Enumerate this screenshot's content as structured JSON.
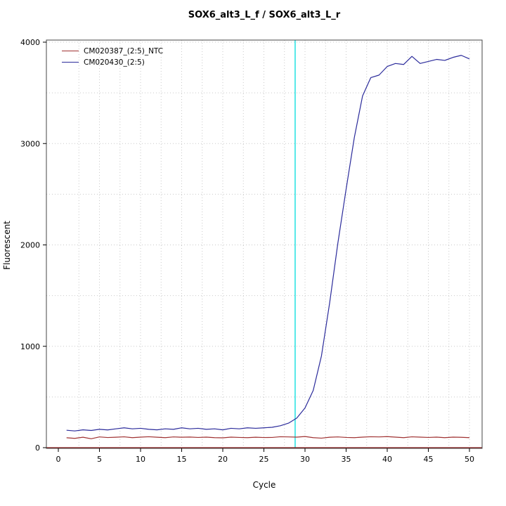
{
  "title": "SOX6_alt3_L_f / SOX6_alt3_L_r",
  "chart_data": {
    "type": "line",
    "title": "SOX6_alt3_L_f / SOX6_alt3_L_r",
    "xlabel": "Cycle",
    "ylabel": "Fluorescent",
    "xlim": [
      0,
      50
    ],
    "ylim": [
      0,
      4000
    ],
    "x_ticks": [
      0,
      5,
      10,
      15,
      20,
      25,
      30,
      35,
      40,
      45,
      50
    ],
    "y_ticks": [
      0,
      1000,
      2000,
      3000,
      4000
    ],
    "grid": {
      "on": true,
      "x_step": 2.5,
      "y_step": 500,
      "color": "#c9c9c9",
      "style": "dotted"
    },
    "legend_position": "top-left",
    "threshold_line": {
      "y": 0,
      "color": "#8b1a1a"
    },
    "ct_marker_line": {
      "x": 28.8,
      "color": "#00dcdc"
    },
    "x": [
      1,
      2,
      3,
      4,
      5,
      6,
      7,
      8,
      9,
      10,
      11,
      12,
      13,
      14,
      15,
      16,
      17,
      18,
      19,
      20,
      21,
      22,
      23,
      24,
      25,
      26,
      27,
      28,
      29,
      30,
      31,
      32,
      33,
      34,
      35,
      36,
      37,
      38,
      39,
      40,
      41,
      42,
      43,
      44,
      45,
      46,
      47,
      48,
      49,
      50
    ],
    "series": [
      {
        "name": "CM020387_(2:5)_NTC",
        "color": "#a03232",
        "values": [
          98,
          92,
          103,
          88,
          106,
          100,
          103,
          107,
          99,
          104,
          108,
          103,
          99,
          106,
          103,
          105,
          101,
          104,
          99,
          97,
          104,
          101,
          99,
          103,
          100,
          101,
          108,
          106,
          104,
          110,
          99,
          94,
          103,
          106,
          101,
          99,
          104,
          108,
          106,
          109,
          104,
          99,
          107,
          104,
          101,
          104,
          99,
          104,
          102,
          99
        ]
      },
      {
        "name": "CM020430_(2:5)",
        "color": "#2b2b9b",
        "values": [
          172,
          165,
          176,
          170,
          181,
          175,
          186,
          196,
          186,
          191,
          181,
          176,
          186,
          181,
          196,
          186,
          191,
          181,
          186,
          176,
          191,
          186,
          196,
          191,
          196,
          201,
          216,
          242,
          292,
          392,
          565,
          905,
          1430,
          2020,
          2550,
          3060,
          3470,
          3650,
          3675,
          3760,
          3790,
          3780,
          3860,
          3790,
          3810,
          3830,
          3820,
          3850,
          3870,
          3835
        ]
      }
    ]
  }
}
